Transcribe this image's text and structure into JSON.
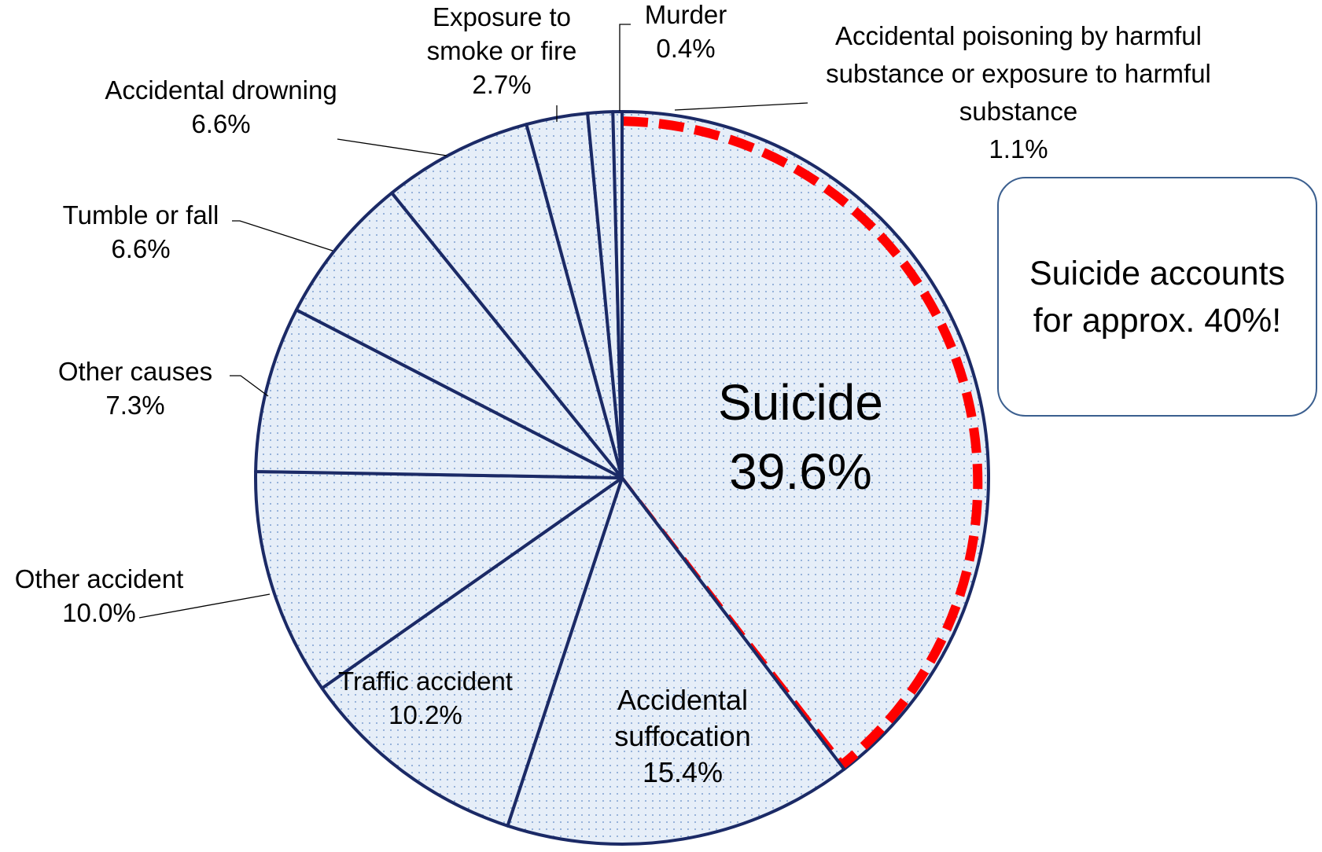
{
  "chart_data": {
    "type": "pie",
    "categories": [
      "Suicide",
      "Accidental suffocation",
      "Traffic accident",
      "Other accident",
      "Other causes",
      "Tumble or fall",
      "Accidental drowning",
      "Exposure to smoke or fire",
      "Accidental poisoning by harmful substance or exposure to harmful substance",
      "Murder"
    ],
    "values": [
      39.6,
      15.4,
      10.2,
      10.0,
      7.3,
      6.6,
      6.6,
      2.7,
      1.1,
      0.4
    ],
    "value_labels": [
      "39.6%",
      "15.4%",
      "10.2%",
      "10.0%",
      "7.3%",
      "6.6%",
      "6.6%",
      "2.7%",
      "1.1%",
      "0.4%"
    ],
    "annotation": "Suicide accounts for approx. 40%!",
    "fill_color": "#e6eef8",
    "dot_color": "#7d9fd0",
    "edge_color": "#1b2a66",
    "highlight_color": "#ff0000"
  }
}
